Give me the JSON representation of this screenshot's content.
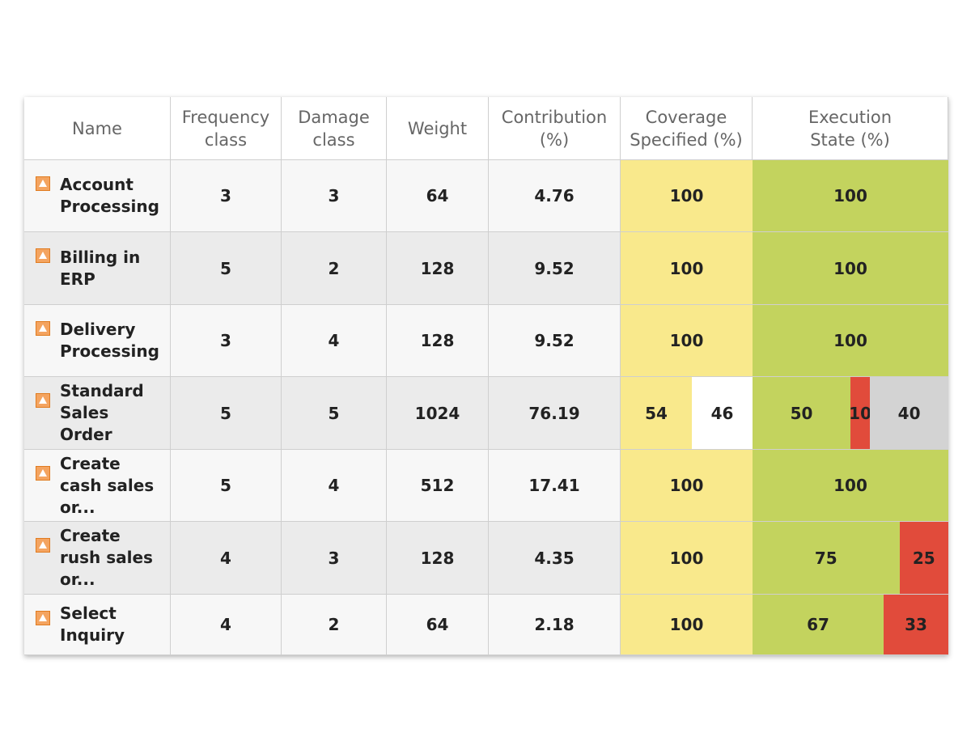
{
  "table": {
    "headers": [
      "Name",
      "Frequency\nclass",
      "Damage\nclass",
      "Weight",
      "Contribution\n(%)",
      "Coverage\nSpecified (%)",
      "Execution\nState (%)"
    ],
    "rows": [
      {
        "name": "Account Processing",
        "frequency": 3,
        "damage": 3,
        "weight": 64,
        "contribution": 4.76,
        "coverage": [
          {
            "value": 100,
            "color": "#f9e98c"
          }
        ],
        "execution": [
          {
            "value": 100,
            "color": "#c3d35e"
          }
        ]
      },
      {
        "name": "Billing in ERP",
        "frequency": 5,
        "damage": 2,
        "weight": 128,
        "contribution": 9.52,
        "coverage": [
          {
            "value": 100,
            "color": "#f9e98c"
          }
        ],
        "execution": [
          {
            "value": 100,
            "color": "#c3d35e"
          }
        ]
      },
      {
        "name": "Delivery Processing",
        "frequency": 3,
        "damage": 4,
        "weight": 128,
        "contribution": 9.52,
        "coverage": [
          {
            "value": 100,
            "color": "#f9e98c"
          }
        ],
        "execution": [
          {
            "value": 100,
            "color": "#c3d35e"
          }
        ]
      },
      {
        "name": "Standard Sales Order",
        "frequency": 5,
        "damage": 5,
        "weight": 1024,
        "contribution": 76.19,
        "coverage": [
          {
            "value": 54,
            "color": "#f9e98c"
          },
          {
            "value": 46,
            "color": "#ffffff"
          }
        ],
        "execution": [
          {
            "value": 50,
            "color": "#c3d35e"
          },
          {
            "value": 10,
            "color": "#e14b3b"
          },
          {
            "value": 40,
            "color": "#d3d3d3"
          }
        ]
      },
      {
        "name": "Create cash sales or...",
        "frequency": 5,
        "damage": 4,
        "weight": 512,
        "contribution": 17.41,
        "coverage": [
          {
            "value": 100,
            "color": "#f9e98c"
          }
        ],
        "execution": [
          {
            "value": 100,
            "color": "#c3d35e"
          }
        ]
      },
      {
        "name": "Create rush sales or...",
        "frequency": 4,
        "damage": 3,
        "weight": 128,
        "contribution": 4.35,
        "coverage": [
          {
            "value": 100,
            "color": "#f9e98c"
          }
        ],
        "execution": [
          {
            "value": 75,
            "color": "#c3d35e"
          },
          {
            "value": 25,
            "color": "#e14b3b"
          }
        ]
      },
      {
        "name": "Select Inquiry",
        "frequency": 4,
        "damage": 2,
        "weight": 64,
        "contribution": 2.18,
        "coverage": [
          {
            "value": 100,
            "color": "#f9e98c"
          }
        ],
        "execution": [
          {
            "value": 67,
            "color": "#c3d35e"
          },
          {
            "value": 33,
            "color": "#e14b3b"
          }
        ]
      }
    ]
  }
}
